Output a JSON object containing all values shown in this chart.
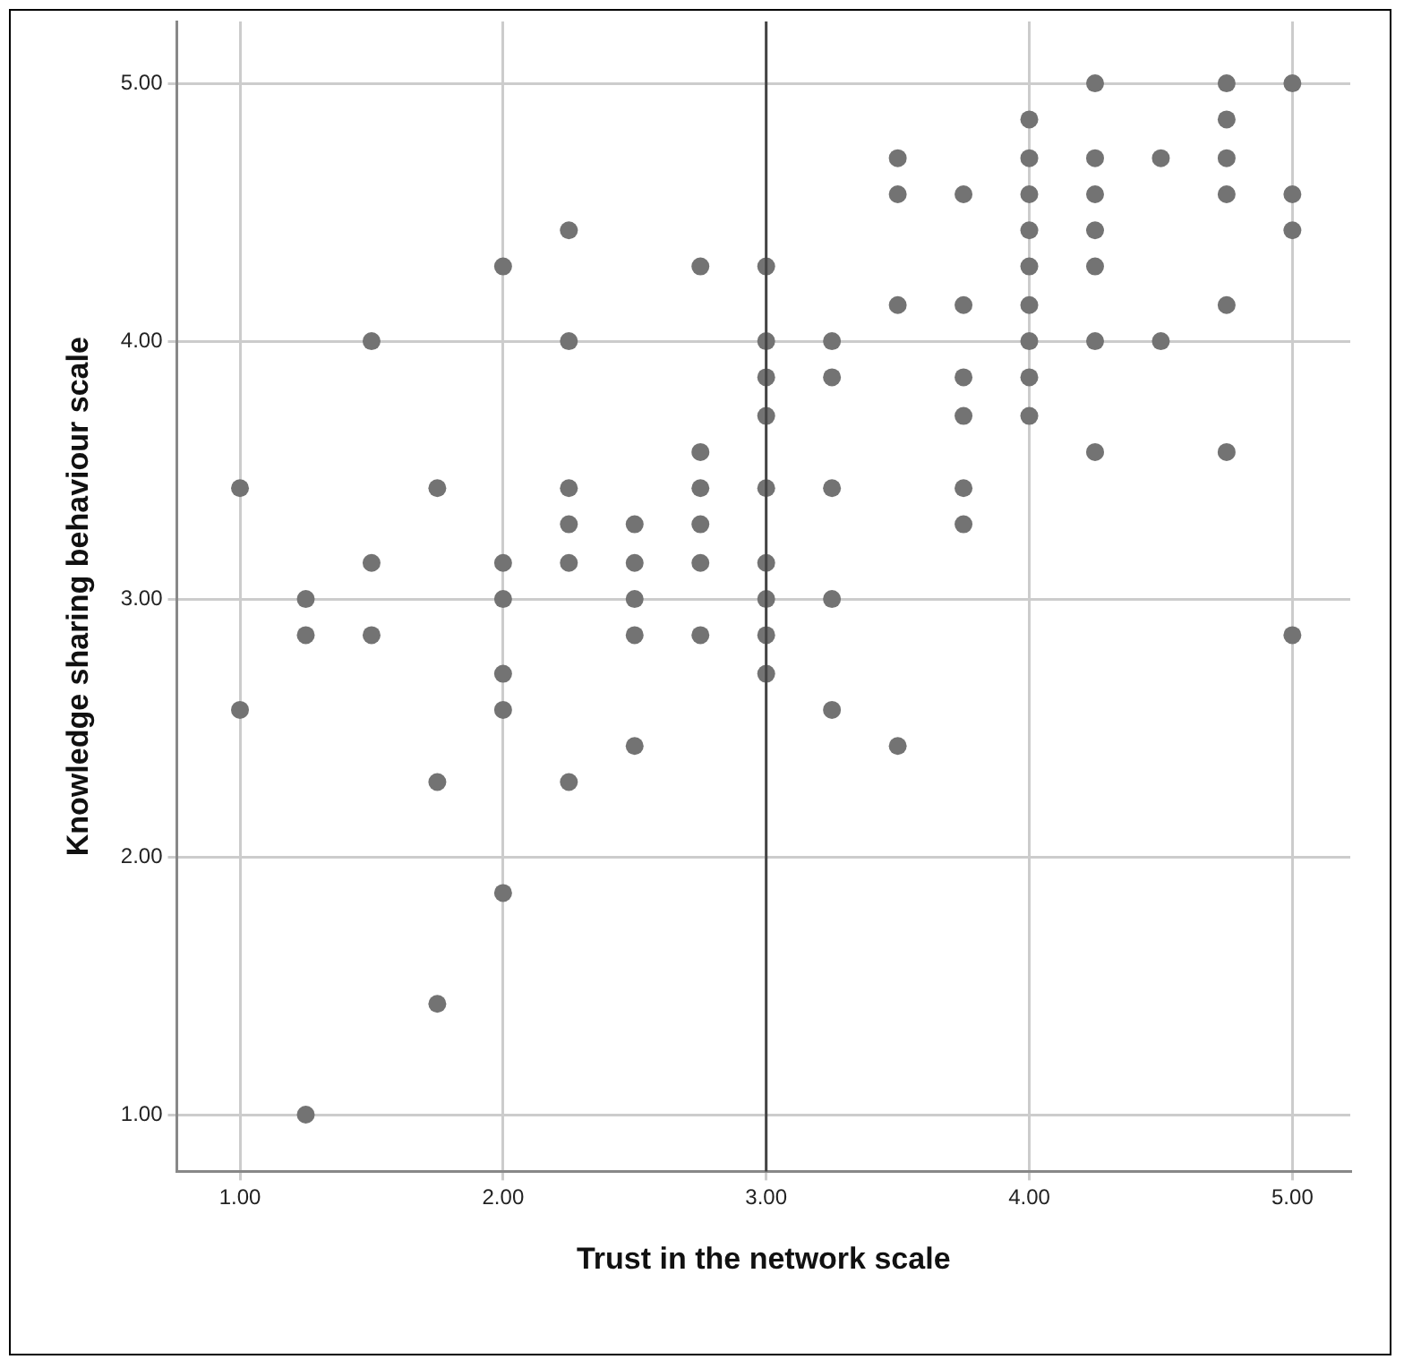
{
  "chart_data": {
    "type": "scatter",
    "xlabel": "Trust in the network scale",
    "ylabel": "Knowledge sharing behaviour scale",
    "x": [
      1,
      1,
      1.25,
      1.25,
      1.25,
      1.5,
      1.5,
      1.5,
      1.75,
      1.75,
      1.75,
      2,
      2,
      2,
      2,
      2,
      2,
      2.25,
      2.25,
      2.25,
      2.25,
      2.25,
      2.25,
      2.5,
      2.5,
      2.5,
      2.5,
      2.5,
      2.75,
      2.75,
      2.75,
      2.75,
      2.75,
      2.75,
      3,
      3,
      3,
      3,
      3,
      3,
      3,
      3,
      3,
      3.25,
      3.25,
      3.25,
      3.25,
      3.25,
      3.5,
      3.5,
      3.5,
      3.5,
      3.75,
      3.75,
      3.75,
      3.75,
      3.75,
      3.75,
      4,
      4,
      4,
      4,
      4,
      4,
      4,
      4,
      4,
      4.25,
      4.25,
      4.25,
      4.25,
      4.25,
      4.25,
      4.25,
      4.5,
      4.5,
      4.75,
      4.75,
      4.75,
      4.75,
      4.75,
      4.75,
      5,
      5,
      5,
      5
    ],
    "series": [
      {
        "color": "#737373",
        "values": [
          3.43,
          2.57,
          3,
          2.86,
          1,
          4,
          3.14,
          2.86,
          3.43,
          2.29,
          1.43,
          4.29,
          3.14,
          3,
          2.71,
          2.57,
          1.86,
          4.43,
          4,
          3.43,
          3.29,
          3.14,
          2.29,
          3.29,
          3.14,
          3,
          2.86,
          2.43,
          4.29,
          3.57,
          3.43,
          3.29,
          3.14,
          2.86,
          4.29,
          4,
          3.86,
          3.71,
          3.43,
          3.14,
          3,
          2.86,
          2.71,
          4,
          3.86,
          3.43,
          3,
          2.57,
          4.71,
          4.57,
          4.14,
          2.43,
          4.57,
          4.14,
          3.86,
          3.71,
          3.43,
          3.29,
          4.86,
          4.71,
          4.57,
          4.43,
          4.29,
          4.14,
          4,
          3.86,
          3.71,
          5,
          4.71,
          4.57,
          4.43,
          4.29,
          4,
          3.57,
          4.71,
          4,
          5,
          4.86,
          4.71,
          4.57,
          4.14,
          3.57,
          5,
          4.57,
          4.43,
          2.86
        ]
      }
    ],
    "xlim": [
      0.76,
      5.22
    ],
    "ylim": [
      0.78,
      5.24
    ],
    "xticks": [
      {
        "value": 1,
        "label": "1.00"
      },
      {
        "value": 2,
        "label": "2.00"
      },
      {
        "value": 3,
        "label": "3.00"
      },
      {
        "value": 4,
        "label": "4.00"
      },
      {
        "value": 5,
        "label": "5.00"
      }
    ],
    "yticks": [
      {
        "value": 1,
        "label": "1.00"
      },
      {
        "value": 2,
        "label": "2.00"
      },
      {
        "value": 3,
        "label": "3.00"
      },
      {
        "value": 4,
        "label": "4.00"
      },
      {
        "value": 5,
        "label": "5.00"
      }
    ],
    "grid": true,
    "marker": "circle",
    "legend": false,
    "ref_lines": [
      {
        "axis": "x",
        "value": 3,
        "color": "#444444"
      }
    ]
  }
}
